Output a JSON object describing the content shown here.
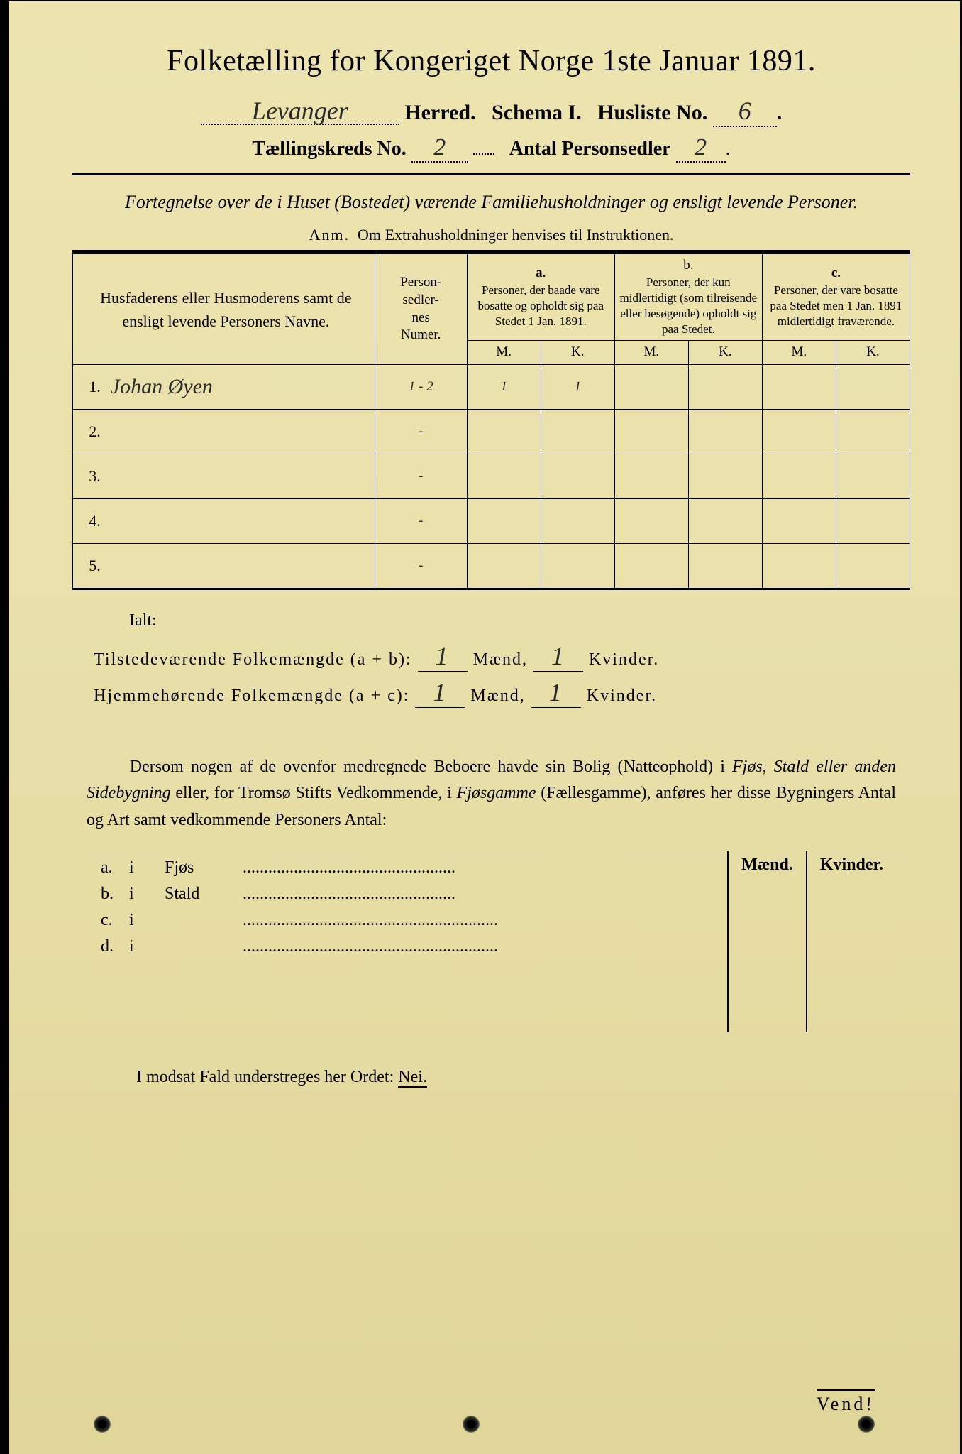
{
  "title": "Folketælling for Kongeriget Norge 1ste Januar 1891.",
  "herred_value": "Levanger",
  "herred_label": "Herred.",
  "schema": "Schema I.",
  "husliste_label": "Husliste No.",
  "husliste_value": "6",
  "tkreds_label": "Tællingskreds No.",
  "tkreds_value": "2",
  "antal_label": "Antal Personsedler",
  "antal_value": "2",
  "fortegnelse": "Fortegnelse over de i Huset (Bostedet) værende Familiehusholdninger og ensligt levende Personer.",
  "anm": "Anm.  Om Extrahusholdninger henvises til Instruktionen.",
  "headers": {
    "name": "Husfaderens eller Husmoderens samt de ensligt levende Personers Navne.",
    "numer": "Person-\nsedler-\nnes\nNumer.",
    "a": "a.",
    "a_text": "Personer, der baade vare bosatte og opholdt sig paa Stedet 1 Jan. 1891.",
    "b": "b.",
    "b_text": "Personer, der kun midlertidigt (som tilreisende eller besøgende) opholdt sig paa Stedet.",
    "c": "c.",
    "c_text": "Personer, der vare bosatte paa Stedet men 1 Jan. 1891 midlertidigt fraværende.",
    "m": "M.",
    "k": "K."
  },
  "rows": [
    {
      "n": "1.",
      "name": "Johan Øyen",
      "num": "1 - 2",
      "am": "1",
      "ak": "1",
      "bm": "",
      "bk": "",
      "cm": "",
      "ck": ""
    },
    {
      "n": "2.",
      "name": "",
      "num": "-",
      "am": "",
      "ak": "",
      "bm": "",
      "bk": "",
      "cm": "",
      "ck": ""
    },
    {
      "n": "3.",
      "name": "",
      "num": "-",
      "am": "",
      "ak": "",
      "bm": "",
      "bk": "",
      "cm": "",
      "ck": ""
    },
    {
      "n": "4.",
      "name": "",
      "num": "-",
      "am": "",
      "ak": "",
      "bm": "",
      "bk": "",
      "cm": "",
      "ck": ""
    },
    {
      "n": "5.",
      "name": "",
      "num": "-",
      "am": "",
      "ak": "",
      "bm": "",
      "bk": "",
      "cm": "",
      "ck": ""
    }
  ],
  "ialt": "Ialt:",
  "totals": {
    "tilstede_label": "Tilstedeværende Folkemængde (a + b):",
    "hjemme_label": "Hjemmehørende Folkemængde (a + c):",
    "maend": "Mænd,",
    "kvinder": "Kvinder.",
    "tilstede_m": "1",
    "tilstede_k": "1",
    "hjemme_m": "1",
    "hjemme_k": "1"
  },
  "dersom": {
    "p1": "Dersom nogen af de ovenfor medregnede Beboere havde sin Bolig (Natteophold) i ",
    "i1": "Fjøs, Stald eller anden Sidebygning",
    "p2": " eller, for Tromsø Stifts Vedkommende, i ",
    "i2": "Fjøsgamme",
    "p3": " (Fællesgamme), anføres her disse Bygningers Antal og Art samt vedkommende Personers Antal:"
  },
  "sidebygning": {
    "maend": "Mænd.",
    "kvinder": "Kvinder.",
    "rows": [
      {
        "letter": "a.",
        "label": "i",
        "type": "Fjøs"
      },
      {
        "letter": "b.",
        "label": "i",
        "type": "Stald"
      },
      {
        "letter": "c.",
        "label": "i",
        "type": ""
      },
      {
        "letter": "d.",
        "label": "i",
        "type": ""
      }
    ]
  },
  "modsat": "I modsat Fald understreges her Ordet: ",
  "nei": "Nei.",
  "vend": "Vend!"
}
